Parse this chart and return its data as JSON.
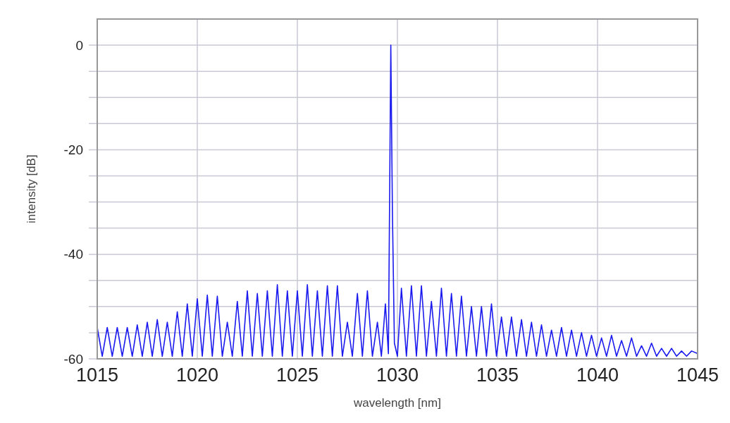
{
  "chart_data": {
    "type": "line",
    "xlabel": "wavelength [nm]",
    "ylabel": "intensity [dB]",
    "xlim": [
      1015,
      1045
    ],
    "xticks": [
      1015,
      1020,
      1025,
      1030,
      1035,
      1040,
      1045
    ],
    "ylim": [
      -60,
      5
    ],
    "yticks": [
      -60,
      {
        "value": -55,
        "label": null
      },
      {
        "value": -50,
        "label": null
      },
      {
        "value": -45,
        "label": null
      },
      -40,
      {
        "value": -35,
        "label": null
      },
      {
        "value": -30,
        "label": null
      },
      {
        "value": -25,
        "label": null
      },
      -20,
      {
        "value": -15,
        "label": null
      },
      {
        "value": -10,
        "label": null
      },
      {
        "value": -5,
        "label": null
      },
      0
    ],
    "grid": true,
    "line_style": "solid",
    "series": [
      {
        "color": "#1a1aee",
        "x": [
          1015,
          1015.25,
          1015.5,
          1015.75,
          1016,
          1016.25,
          1016.5,
          1016.75,
          1017,
          1017.25,
          1017.5,
          1017.75,
          1018,
          1018.25,
          1018.5,
          1018.75,
          1019,
          1019.25,
          1019.5,
          1019.75,
          1020,
          1020.25,
          1020.5,
          1020.75,
          1021,
          1021.25,
          1021.5,
          1021.75,
          1022,
          1022.25,
          1022.5,
          1022.75,
          1023,
          1023.25,
          1023.5,
          1023.75,
          1024,
          1024.25,
          1024.5,
          1024.75,
          1025,
          1025.25,
          1025.5,
          1025.75,
          1026,
          1026.25,
          1026.5,
          1026.75,
          1027,
          1027.25,
          1027.5,
          1027.75,
          1028,
          1028.25,
          1028.5,
          1028.75,
          1029,
          1029.2,
          1029.4,
          1029.55,
          1029.67,
          1029.75,
          1029.85,
          1030,
          1030.2,
          1030.45,
          1030.7,
          1030.95,
          1031.2,
          1031.45,
          1031.7,
          1031.95,
          1032.2,
          1032.45,
          1032.7,
          1032.95,
          1033.2,
          1033.45,
          1033.7,
          1033.95,
          1034.2,
          1034.45,
          1034.7,
          1034.95,
          1035.2,
          1035.45,
          1035.7,
          1035.95,
          1036.2,
          1036.45,
          1036.7,
          1036.95,
          1037.2,
          1037.45,
          1037.7,
          1037.95,
          1038.2,
          1038.45,
          1038.7,
          1038.95,
          1039.2,
          1039.45,
          1039.7,
          1039.95,
          1040.2,
          1040.45,
          1040.7,
          1040.95,
          1041.2,
          1041.45,
          1041.7,
          1041.95,
          1042.2,
          1042.45,
          1042.7,
          1042.95,
          1043.2,
          1043.45,
          1043.7,
          1043.95,
          1044.2,
          1044.45,
          1044.7,
          1045
        ],
        "values": [
          -54,
          -59.5,
          -54,
          -59.5,
          -54,
          -59.5,
          -54,
          -59.5,
          -53.5,
          -59.5,
          -53,
          -59.5,
          -52.5,
          -59.5,
          -53,
          -59.5,
          -51,
          -59.5,
          -49.5,
          -59.5,
          -48.5,
          -59.5,
          -47.8,
          -59.5,
          -48,
          -59.5,
          -53,
          -59.5,
          -49,
          -59.5,
          -47,
          -59.5,
          -47.5,
          -59.5,
          -47,
          -59.5,
          -45.8,
          -59.5,
          -47,
          -59.5,
          -47,
          -59.5,
          -45.8,
          -59.5,
          -47,
          -59.5,
          -46,
          -59.5,
          -46,
          -59.5,
          -53,
          -59.5,
          -47.5,
          -59.5,
          -47,
          -59.5,
          -53,
          -59.5,
          -49.5,
          -59,
          0,
          -32,
          -57,
          -59.5,
          -46.5,
          -59.5,
          -46,
          -59.5,
          -46,
          -59.5,
          -49,
          -59.5,
          -46.5,
          -59.5,
          -47.5,
          -59.5,
          -48,
          -59.5,
          -50,
          -59.5,
          -50,
          -59.5,
          -49.5,
          -59.5,
          -52,
          -59.5,
          -52,
          -59.5,
          -52.5,
          -59.5,
          -53,
          -59.5,
          -53.5,
          -59.5,
          -54.5,
          -59.5,
          -54,
          -59.5,
          -54.5,
          -59.5,
          -55,
          -59.5,
          -55.5,
          -59.5,
          -56,
          -59.5,
          -55.5,
          -59.5,
          -56.5,
          -59.5,
          -56,
          -59.5,
          -57.5,
          -59.5,
          -57,
          -59.5,
          -58,
          -59.5,
          -58,
          -59.5,
          -58.5,
          -59.5,
          -58.5,
          -59
        ]
      }
    ]
  }
}
